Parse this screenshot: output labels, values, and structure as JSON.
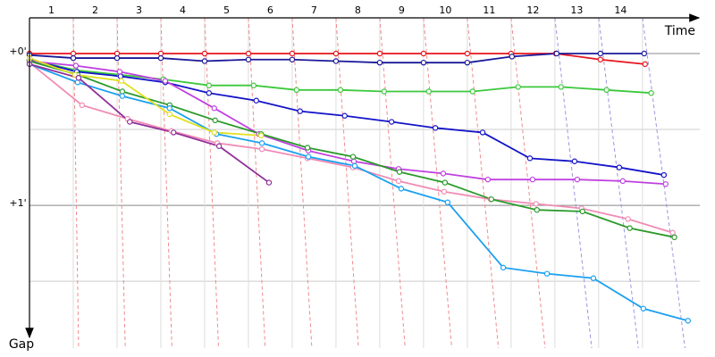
{
  "chart_data": {
    "type": "line",
    "x_label": "Time",
    "y_label": "Gap",
    "xlim": [
      0,
      15.31
    ],
    "ylim": [
      -0.235,
      1.94
    ],
    "xticks": [
      {
        "value": 0.5,
        "label": "1"
      },
      {
        "value": 1.5,
        "label": "2"
      },
      {
        "value": 2.5,
        "label": "3"
      },
      {
        "value": 3.5,
        "label": "4"
      },
      {
        "value": 4.5,
        "label": "5"
      },
      {
        "value": 5.5,
        "label": "6"
      },
      {
        "value": 6.5,
        "label": "7"
      },
      {
        "value": 7.5,
        "label": "8"
      },
      {
        "value": 8.5,
        "label": "9"
      },
      {
        "value": 9.5,
        "label": "10"
      },
      {
        "value": 10.5,
        "label": "11"
      },
      {
        "value": 11.5,
        "label": "12"
      },
      {
        "value": 12.5,
        "label": "13"
      },
      {
        "value": 13.5,
        "label": "14"
      }
    ],
    "yticks": [
      {
        "value": 0,
        "label": "+0'"
      },
      {
        "value": 1,
        "label": "+1'"
      }
    ],
    "minor_yticks": [
      0.5,
      1.5
    ],
    "grid": true,
    "series": [
      {
        "color": "#e8141b",
        "x": [
          0,
          1,
          2,
          3,
          4,
          5,
          6,
          7,
          8,
          9,
          10,
          11,
          12.02,
          13.04,
          14.06
        ],
        "values": [
          0,
          0,
          0,
          0,
          0,
          0,
          0,
          0,
          0,
          0,
          0,
          0,
          0,
          0.04,
          0.07
        ]
      },
      {
        "color": "#1a1a9a",
        "x": [
          0,
          1,
          2,
          3,
          4,
          5,
          6,
          7,
          8,
          9,
          10,
          11.02,
          12.04,
          13.04,
          14.04
        ],
        "values": [
          0.01,
          0.03,
          0.03,
          0.03,
          0.05,
          0.04,
          0.04,
          0.05,
          0.06,
          0.06,
          0.06,
          0.02,
          0,
          0,
          0
        ]
      },
      {
        "color": "#3cc83c",
        "x": [
          0,
          1.06,
          2.06,
          3.06,
          4.1,
          5.12,
          6.1,
          7.1,
          8.1,
          9.12,
          10.12,
          11.16,
          12.14,
          13.18,
          14.2
        ],
        "values": [
          0.04,
          0.11,
          0.14,
          0.17,
          0.21,
          0.21,
          0.24,
          0.24,
          0.25,
          0.25,
          0.25,
          0.22,
          0.22,
          0.24,
          0.26
        ]
      },
      {
        "color": "#1414c8",
        "x": [
          0,
          1.08,
          2.08,
          3.1,
          4.1,
          5.18,
          6.18,
          7.2,
          8.27,
          9.27,
          10.35,
          11.43,
          12.45,
          13.47,
          14.49
        ],
        "values": [
          0.04,
          0.12,
          0.15,
          0.19,
          0.26,
          0.31,
          0.38,
          0.41,
          0.45,
          0.49,
          0.52,
          0.69,
          0.71,
          0.75,
          0.8
        ]
      },
      {
        "color": "#c040e0",
        "x": [
          0,
          1.06,
          2.06,
          3.1,
          4.22,
          5.24,
          6.37,
          7.41,
          8.43,
          9.45,
          10.47,
          11.49,
          12.51,
          13.55,
          14.53
        ],
        "values": [
          0.05,
          0.08,
          0.12,
          0.18,
          0.36,
          0.53,
          0.64,
          0.71,
          0.76,
          0.79,
          0.83,
          0.83,
          0.83,
          0.84,
          0.86
        ]
      },
      {
        "color": "#f08cb4",
        "x": [
          0,
          1.2,
          2.24,
          3.24,
          4.29,
          5.31,
          6.35,
          7.39,
          8.43,
          9.47,
          10.53,
          11.57,
          12.61,
          13.67,
          14.69
        ],
        "values": [
          0.06,
          0.34,
          0.43,
          0.51,
          0.59,
          0.63,
          0.69,
          0.75,
          0.84,
          0.91,
          0.96,
          0.99,
          1.02,
          1.09,
          1.18
        ]
      },
      {
        "color": "#2a9a2a",
        "x": [
          0,
          1.1,
          2.12,
          3.2,
          4.24,
          5.29,
          6.35,
          7.39,
          8.45,
          9.49,
          10.55,
          11.59,
          12.63,
          13.71,
          14.73
        ],
        "values": [
          0.05,
          0.14,
          0.25,
          0.34,
          0.44,
          0.53,
          0.62,
          0.68,
          0.78,
          0.85,
          0.96,
          1.03,
          1.04,
          1.15,
          1.21
        ]
      },
      {
        "color": "#1aa0f0",
        "x": [
          0,
          1.1,
          2.12,
          3.2,
          4.27,
          5.31,
          6.37,
          7.43,
          8.49,
          9.55,
          10.82,
          11.82,
          12.88,
          14.02,
          15.04
        ],
        "values": [
          0.07,
          0.19,
          0.28,
          0.36,
          0.53,
          0.59,
          0.68,
          0.74,
          0.89,
          0.98,
          1.41,
          1.45,
          1.48,
          1.68,
          1.76
        ]
      },
      {
        "color": "#e0e020",
        "x": [
          0,
          1.04,
          2.1,
          3.2,
          4.22,
          5.29
        ],
        "values": [
          0.03,
          0.14,
          0.18,
          0.4,
          0.52,
          0.54
        ]
      },
      {
        "color": "#90309a",
        "x": [
          0,
          1.12,
          2.29,
          3.29,
          4.33,
          5.47
        ],
        "values": [
          0.07,
          0.16,
          0.45,
          0.52,
          0.61,
          0.85
        ]
      }
    ]
  }
}
